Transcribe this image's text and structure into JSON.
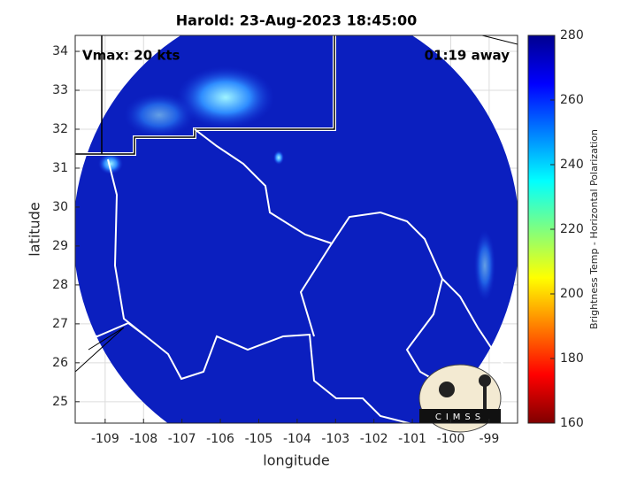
{
  "chart_data": {
    "type": "map",
    "title": "Harold: 23-Aug-2023 18:45:00",
    "annotations": [
      "Vmax: 20 kts",
      "01:19 away"
    ],
    "xlabel": "longitude",
    "ylabel": "latitude",
    "xlim": [
      -109.78,
      -98.26
    ],
    "ylim": [
      24.45,
      34.41
    ],
    "xticks": [
      -109,
      -108,
      -107,
      -106,
      -105,
      -104,
      -103,
      -102,
      -101,
      -100,
      -99
    ],
    "yticks": [
      25,
      26,
      27,
      28,
      29,
      30,
      31,
      32,
      33,
      34
    ],
    "grid": true,
    "colorbar": {
      "label": "Brightness Temp - Horizontal Polarization",
      "lim": [
        160,
        280
      ],
      "ticks": [
        160,
        180,
        200,
        220,
        240,
        260,
        280
      ]
    }
  },
  "logo_text": "CIMSS"
}
